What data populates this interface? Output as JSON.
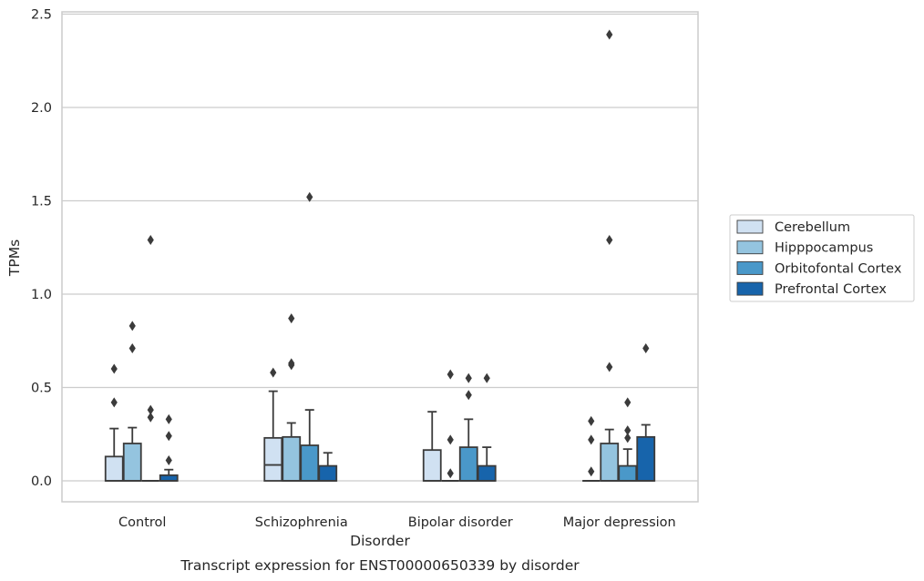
{
  "chart_data": {
    "type": "box",
    "title": "Transcript expression for ENST00000650339 by disorder",
    "xlabel": "Disorder",
    "ylabel": "TPMs",
    "ylim": [
      -0.115,
      2.515
    ],
    "yticks": [
      0.0,
      0.5,
      1.0,
      1.5,
      2.0,
      2.5
    ],
    "ytick_labels": [
      "0.0",
      "0.5",
      "1.0",
      "1.5",
      "2.0",
      "2.5"
    ],
    "grid": "horizontal",
    "legend_position": "right",
    "categories": [
      "Control",
      "Schizophrenia",
      "Bipolar disorder",
      "Major depression"
    ],
    "series": [
      {
        "name": "Cerebellum",
        "color": "#d0e1f2",
        "boxes": [
          {
            "q1": 0.0,
            "median": 0.0,
            "q3": 0.13,
            "whisker_low": 0.0,
            "whisker_high": 0.28,
            "outliers": [
              0.42,
              0.6
            ]
          },
          {
            "q1": 0.0,
            "median": 0.085,
            "q3": 0.23,
            "whisker_low": 0.0,
            "whisker_high": 0.48,
            "outliers": [
              0.58
            ]
          },
          {
            "q1": 0.0,
            "median": 0.0,
            "q3": 0.165,
            "whisker_low": 0.0,
            "whisker_high": 0.37,
            "outliers": []
          },
          {
            "q1": 0.0,
            "median": 0.0,
            "q3": 0.0,
            "whisker_low": 0.0,
            "whisker_high": 0.0,
            "outliers": [
              0.05,
              0.22,
              0.32
            ]
          }
        ]
      },
      {
        "name": "Hipppocampus",
        "color": "#94c4df",
        "boxes": [
          {
            "q1": 0.0,
            "median": 0.0,
            "q3": 0.2,
            "whisker_low": 0.0,
            "whisker_high": 0.285,
            "outliers": [
              0.71,
              0.83
            ]
          },
          {
            "q1": 0.0,
            "median": 0.0,
            "q3": 0.235,
            "whisker_low": 0.0,
            "whisker_high": 0.31,
            "outliers": [
              0.62,
              0.63,
              0.87
            ]
          },
          {
            "q1": 0.0,
            "median": 0.0,
            "q3": 0.0,
            "whisker_low": 0.0,
            "whisker_high": 0.0,
            "outliers": [
              0.04,
              0.22,
              0.57
            ]
          },
          {
            "q1": 0.0,
            "median": 0.0,
            "q3": 0.2,
            "whisker_low": 0.0,
            "whisker_high": 0.275,
            "outliers": [
              0.61,
              1.29,
              2.39
            ]
          }
        ]
      },
      {
        "name": "Orbitofontal Cortex",
        "color": "#4a98c9",
        "boxes": [
          {
            "q1": 0.0,
            "median": 0.0,
            "q3": 0.0,
            "whisker_low": 0.0,
            "whisker_high": 0.0,
            "outliers": [
              0.34,
              0.38,
              1.29
            ]
          },
          {
            "q1": 0.0,
            "median": 0.0,
            "q3": 0.19,
            "whisker_low": 0.0,
            "whisker_high": 0.38,
            "outliers": [
              1.52
            ]
          },
          {
            "q1": 0.0,
            "median": 0.0,
            "q3": 0.18,
            "whisker_low": 0.0,
            "whisker_high": 0.33,
            "outliers": [
              0.46,
              0.55
            ]
          },
          {
            "q1": 0.0,
            "median": 0.0,
            "q3": 0.08,
            "whisker_low": 0.0,
            "whisker_high": 0.17,
            "outliers": [
              0.23,
              0.27,
              0.42
            ]
          }
        ]
      },
      {
        "name": "Prefrontal Cortex",
        "color": "#1764ab",
        "boxes": [
          {
            "q1": 0.0,
            "median": 0.0,
            "q3": 0.03,
            "whisker_low": 0.0,
            "whisker_high": 0.06,
            "outliers": [
              0.11,
              0.24,
              0.33
            ]
          },
          {
            "q1": 0.0,
            "median": 0.0,
            "q3": 0.08,
            "whisker_low": 0.0,
            "whisker_high": 0.15,
            "outliers": []
          },
          {
            "q1": 0.0,
            "median": 0.0,
            "q3": 0.08,
            "whisker_low": 0.0,
            "whisker_high": 0.18,
            "outliers": [
              0.55
            ]
          },
          {
            "q1": 0.0,
            "median": 0.0,
            "q3": 0.235,
            "whisker_low": 0.0,
            "whisker_high": 0.3,
            "outliers": [
              0.71
            ]
          }
        ]
      }
    ]
  }
}
